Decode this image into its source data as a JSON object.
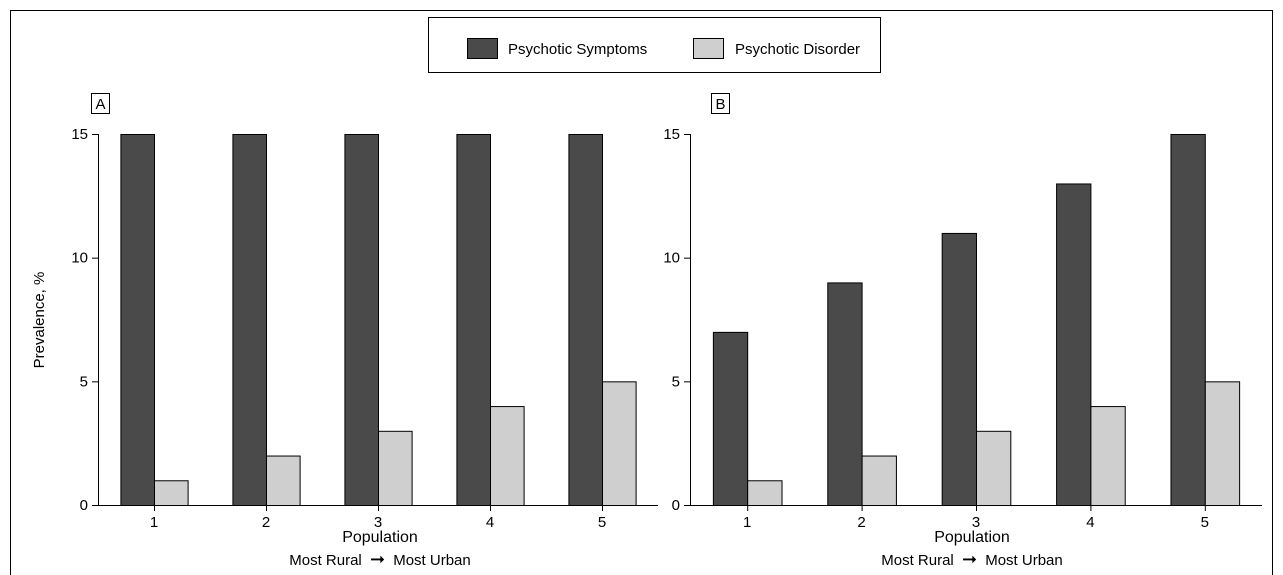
{
  "legend": {
    "items": [
      {
        "label": "Psychotic Symptoms",
        "color": "#4a4a4a"
      },
      {
        "label": "Psychotic Disorder",
        "color": "#cfcfcf"
      }
    ]
  },
  "chart_data": [
    {
      "type": "bar",
      "panel_label": "A",
      "categories": [
        "1",
        "2",
        "3",
        "4",
        "5"
      ],
      "series": [
        {
          "name": "Psychotic Symptoms",
          "values": [
            15,
            15,
            15,
            15,
            15
          ],
          "color": "#4a4a4a"
        },
        {
          "name": "Psychotic Disorder",
          "values": [
            1,
            2,
            3,
            4,
            5
          ],
          "color": "#cfcfcf"
        }
      ],
      "ylabel": "Prevalence, %",
      "xlabel": "Population",
      "xlabel_sub": {
        "left": "Most Rural",
        "arrow": "➞",
        "right": "Most Urban"
      },
      "ylim": [
        0,
        15
      ],
      "yticks": [
        0,
        5,
        10,
        15
      ],
      "grid": false
    },
    {
      "type": "bar",
      "panel_label": "B",
      "categories": [
        "1",
        "2",
        "3",
        "4",
        "5"
      ],
      "series": [
        {
          "name": "Psychotic Symptoms",
          "values": [
            7,
            9,
            11,
            13,
            15
          ],
          "color": "#4a4a4a"
        },
        {
          "name": "Psychotic Disorder",
          "values": [
            1,
            2,
            3,
            4,
            5
          ],
          "color": "#cfcfcf"
        }
      ],
      "ylabel": "",
      "xlabel": "Population",
      "xlabel_sub": {
        "left": "Most Rural",
        "arrow": "➞",
        "right": "Most Urban"
      },
      "ylim": [
        0,
        15
      ],
      "yticks": [
        0,
        5,
        10,
        15
      ],
      "grid": false
    }
  ]
}
